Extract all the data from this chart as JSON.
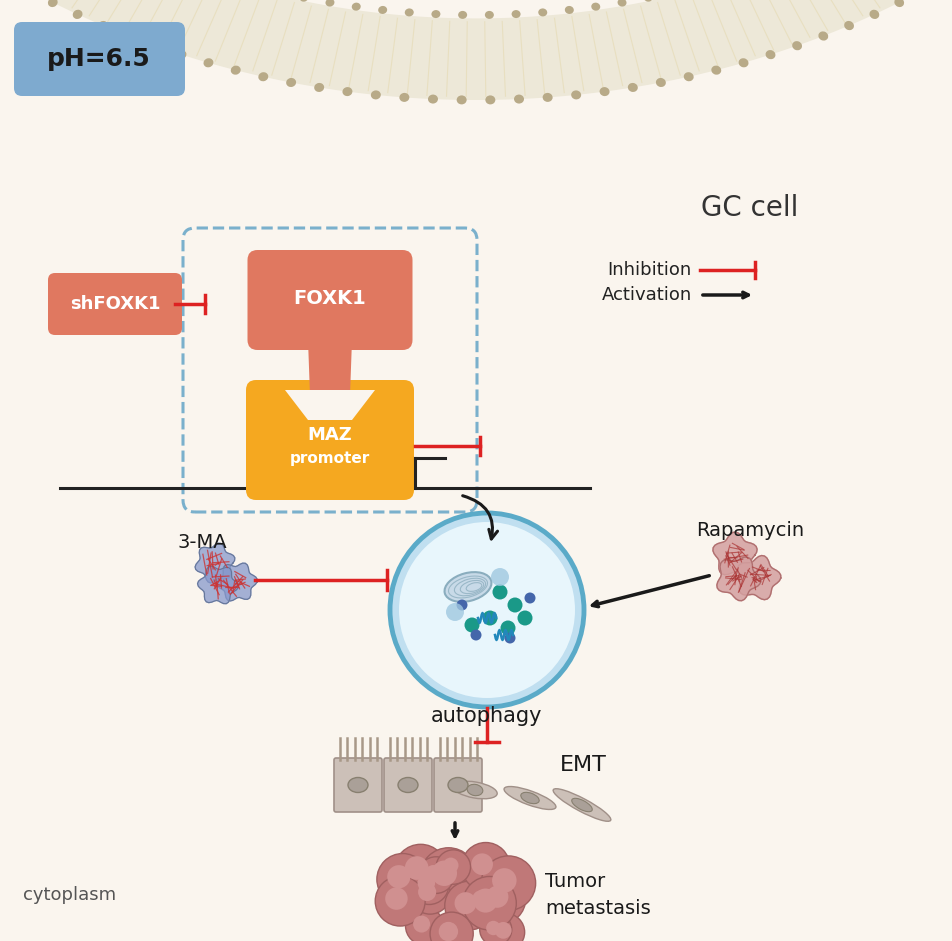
{
  "bg_color": "#faf5ee",
  "membrane_fill": "#e8e0c8",
  "membrane_dot_color": "#b8aa88",
  "membrane_line_color": "#d4c8a0",
  "cell_label": "GC cell",
  "cytoplasm_label": "cytoplasm",
  "ph_label": "pH=6.5",
  "ph_bg": "#7eaacf",
  "foxk1_color": "#e07860",
  "foxk1_color2": "#d4907a",
  "maz_color": "#f5a820",
  "shfoxk1_color": "#e07860",
  "dashed_box_color": "#7ab0cc",
  "autophagy_fill": "#e8f6fc",
  "autophagy_border": "#5aaac8",
  "autophagy_outer_fill": "#c0dff0",
  "red_color": "#dd2222",
  "black_color": "#1a1a1a",
  "inhibition_label": "Inhibition",
  "activation_label": "Activation",
  "autophagy_label": "autophagy",
  "emt_label": "EMT",
  "tumor_label": "Tumor\nmetastasis",
  "rapamycin_label": "Rapamycin",
  "ma_label": "3-MA",
  "foxk1_label": "FOXK1",
  "maz_label1": "MAZ",
  "maz_label2": "promoter",
  "shfoxk1_label": "shFOXK1",
  "gc_label": "GC cell"
}
